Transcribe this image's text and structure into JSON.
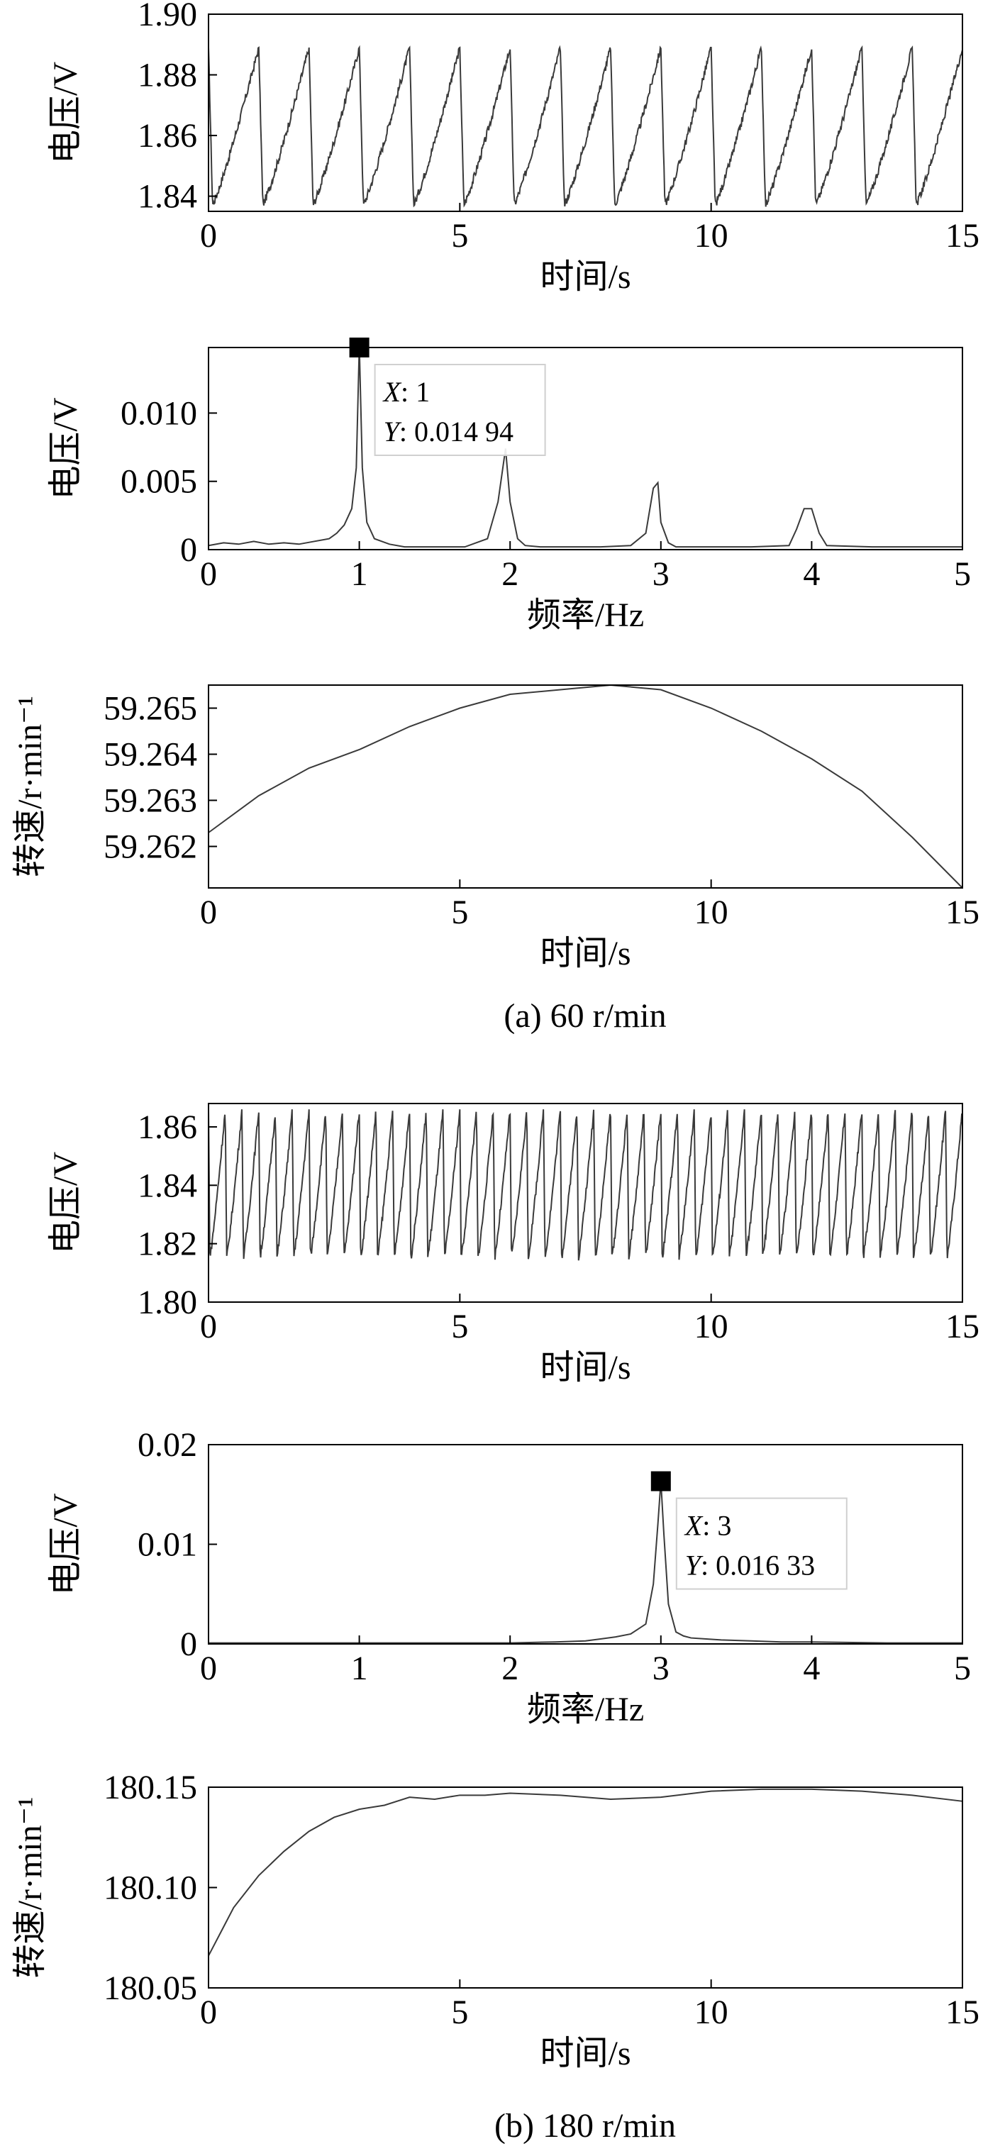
{
  "figure_captions": [
    "(a) 60 r/min",
    "(b) 180 r/min"
  ],
  "chart_data": [
    {
      "type": "line",
      "panel": "a1",
      "xlabel": "时间/s",
      "ylabel": "电压/V",
      "xlim": [
        0,
        15
      ],
      "ylim": [
        1.835,
        1.9
      ],
      "xticks": [
        0,
        5,
        10,
        15
      ],
      "xtick_labels": [
        "0",
        "5",
        "10",
        "15"
      ],
      "yticks": [
        1.84,
        1.86,
        1.88,
        1.9
      ],
      "ytick_labels": [
        "1.84",
        "1.86",
        "1.88",
        "1.90"
      ],
      "signal": {
        "period_s": 1.0,
        "min": 1.835,
        "max": 1.889,
        "waveform": "sawtooth"
      }
    },
    {
      "type": "line",
      "panel": "a2",
      "xlabel": "频率/Hz",
      "ylabel": "电压/V",
      "xlim": [
        0,
        5
      ],
      "ylim": [
        0,
        0.0148
      ],
      "xticks": [
        0,
        1,
        2,
        3,
        4,
        5
      ],
      "xtick_labels": [
        "0",
        "1",
        "2",
        "3",
        "4",
        "5"
      ],
      "yticks": [
        0,
        0.005,
        0.01
      ],
      "ytick_labels": [
        "0",
        "0.005",
        "0.010"
      ],
      "x": [
        0.0,
        0.1,
        0.2,
        0.3,
        0.4,
        0.5,
        0.6,
        0.7,
        0.8,
        0.85,
        0.9,
        0.95,
        0.98,
        1.0,
        1.02,
        1.05,
        1.1,
        1.2,
        1.3,
        1.5,
        1.7,
        1.85,
        1.92,
        1.97,
        2.0,
        2.05,
        2.1,
        2.2,
        2.4,
        2.6,
        2.8,
        2.9,
        2.95,
        2.98,
        3.0,
        3.05,
        3.1,
        3.3,
        3.6,
        3.85,
        3.9,
        3.95,
        4.0,
        4.05,
        4.1,
        4.4,
        4.7,
        5.0
      ],
      "y": [
        0.0003,
        0.0005,
        0.0004,
        0.0006,
        0.0004,
        0.0005,
        0.0004,
        0.0006,
        0.0008,
        0.0012,
        0.0018,
        0.003,
        0.006,
        0.01494,
        0.006,
        0.002,
        0.0008,
        0.0004,
        0.0002,
        0.0002,
        0.0002,
        0.0008,
        0.0035,
        0.0074,
        0.0035,
        0.0008,
        0.0003,
        0.0002,
        0.0002,
        0.0002,
        0.0003,
        0.0012,
        0.0045,
        0.0049,
        0.002,
        0.0005,
        0.0002,
        0.0002,
        0.0002,
        0.0003,
        0.0015,
        0.003,
        0.003,
        0.0012,
        0.0003,
        0.0002,
        0.0002,
        0.0002
      ],
      "annotation": {
        "x": 1,
        "y": 0.01494,
        "x_label": "X",
        "y_label": "Y",
        "x_text": ": 1",
        "y_text": ": 0.014 94"
      }
    },
    {
      "type": "line",
      "panel": "a3",
      "xlabel": "时间/s",
      "ylabel": "转速/r·min⁻¹",
      "xlim": [
        0,
        15
      ],
      "ylim": [
        59.2611,
        59.2655
      ],
      "xticks": [
        0,
        5,
        10,
        15
      ],
      "xtick_labels": [
        "0",
        "5",
        "10",
        "15"
      ],
      "yticks": [
        59.262,
        59.263,
        59.264,
        59.265
      ],
      "ytick_labels": [
        "59.262",
        "59.263",
        "59.264",
        "59.265"
      ],
      "x": [
        0,
        1,
        2,
        3,
        4,
        5,
        6,
        7,
        8,
        9,
        10,
        11,
        12,
        13,
        14,
        15
      ],
      "y": [
        59.2623,
        59.2631,
        59.2637,
        59.2641,
        59.2646,
        59.265,
        59.2653,
        59.2654,
        59.2655,
        59.2654,
        59.265,
        59.2645,
        59.2639,
        59.2632,
        59.2622,
        59.2611
      ]
    },
    {
      "type": "line",
      "panel": "b1",
      "xlabel": "时间/s",
      "ylabel": "电压/V",
      "xlim": [
        0,
        15
      ],
      "ylim": [
        1.8,
        1.868
      ],
      "xticks": [
        0,
        5,
        10,
        15
      ],
      "xtick_labels": [
        "0",
        "5",
        "10",
        "15"
      ],
      "yticks": [
        1.8,
        1.82,
        1.84,
        1.86
      ],
      "ytick_labels": [
        "1.80",
        "1.82",
        "1.84",
        "1.86"
      ],
      "signal": {
        "period_s": 0.3333,
        "min": 1.813,
        "max": 1.866,
        "waveform": "sawtooth"
      }
    },
    {
      "type": "line",
      "panel": "b2",
      "xlabel": "频率/Hz",
      "ylabel": "电压/V",
      "xlim": [
        0,
        5
      ],
      "ylim": [
        0,
        0.02
      ],
      "xticks": [
        0,
        1,
        2,
        3,
        4,
        5
      ],
      "xtick_labels": [
        "0",
        "1",
        "2",
        "3",
        "4",
        "5"
      ],
      "yticks": [
        0,
        0.01,
        0.02
      ],
      "ytick_labels": [
        "0",
        "0.01",
        "0.02"
      ],
      "x": [
        0.0,
        0.5,
        1.0,
        1.5,
        2.0,
        2.3,
        2.5,
        2.6,
        2.7,
        2.8,
        2.85,
        2.9,
        2.95,
        2.98,
        3.0,
        3.02,
        3.05,
        3.1,
        3.15,
        3.2,
        3.3,
        3.4,
        3.6,
        3.8,
        4.0,
        4.5,
        5.0
      ],
      "y": [
        0.0001,
        0.0001,
        0.0001,
        0.0001,
        0.0001,
        0.0002,
        0.0003,
        0.0005,
        0.0007,
        0.001,
        0.0015,
        0.002,
        0.006,
        0.012,
        0.01633,
        0.011,
        0.004,
        0.0012,
        0.0008,
        0.0006,
        0.0005,
        0.0004,
        0.0003,
        0.0002,
        0.0002,
        0.0001,
        0.0001
      ],
      "annotation": {
        "x": 3,
        "y": 0.01633,
        "x_label": "X",
        "y_label": "Y",
        "x_text": ": 3",
        "y_text": ": 0.016 33"
      }
    },
    {
      "type": "line",
      "panel": "b3",
      "xlabel": "时间/s",
      "ylabel": "转速/r·min⁻¹",
      "xlim": [
        0,
        15
      ],
      "ylim": [
        180.05,
        180.15
      ],
      "xticks": [
        0,
        5,
        10,
        15
      ],
      "xtick_labels": [
        "0",
        "5",
        "10",
        "15"
      ],
      "yticks": [
        180.05,
        180.1,
        180.15
      ],
      "ytick_labels": [
        "180.05",
        "180.10",
        "180.15"
      ],
      "x": [
        0,
        0.25,
        0.5,
        1,
        1.5,
        2,
        2.5,
        3,
        3.5,
        4,
        4.5,
        5,
        5.5,
        6,
        7,
        8,
        9,
        10,
        11,
        12,
        13,
        14,
        15
      ],
      "y": [
        180.066,
        180.078,
        180.09,
        180.106,
        180.118,
        180.128,
        180.135,
        180.139,
        180.141,
        180.145,
        180.144,
        180.146,
        180.146,
        180.147,
        180.146,
        180.144,
        180.145,
        180.148,
        180.149,
        180.149,
        180.148,
        180.146,
        180.143
      ]
    }
  ]
}
